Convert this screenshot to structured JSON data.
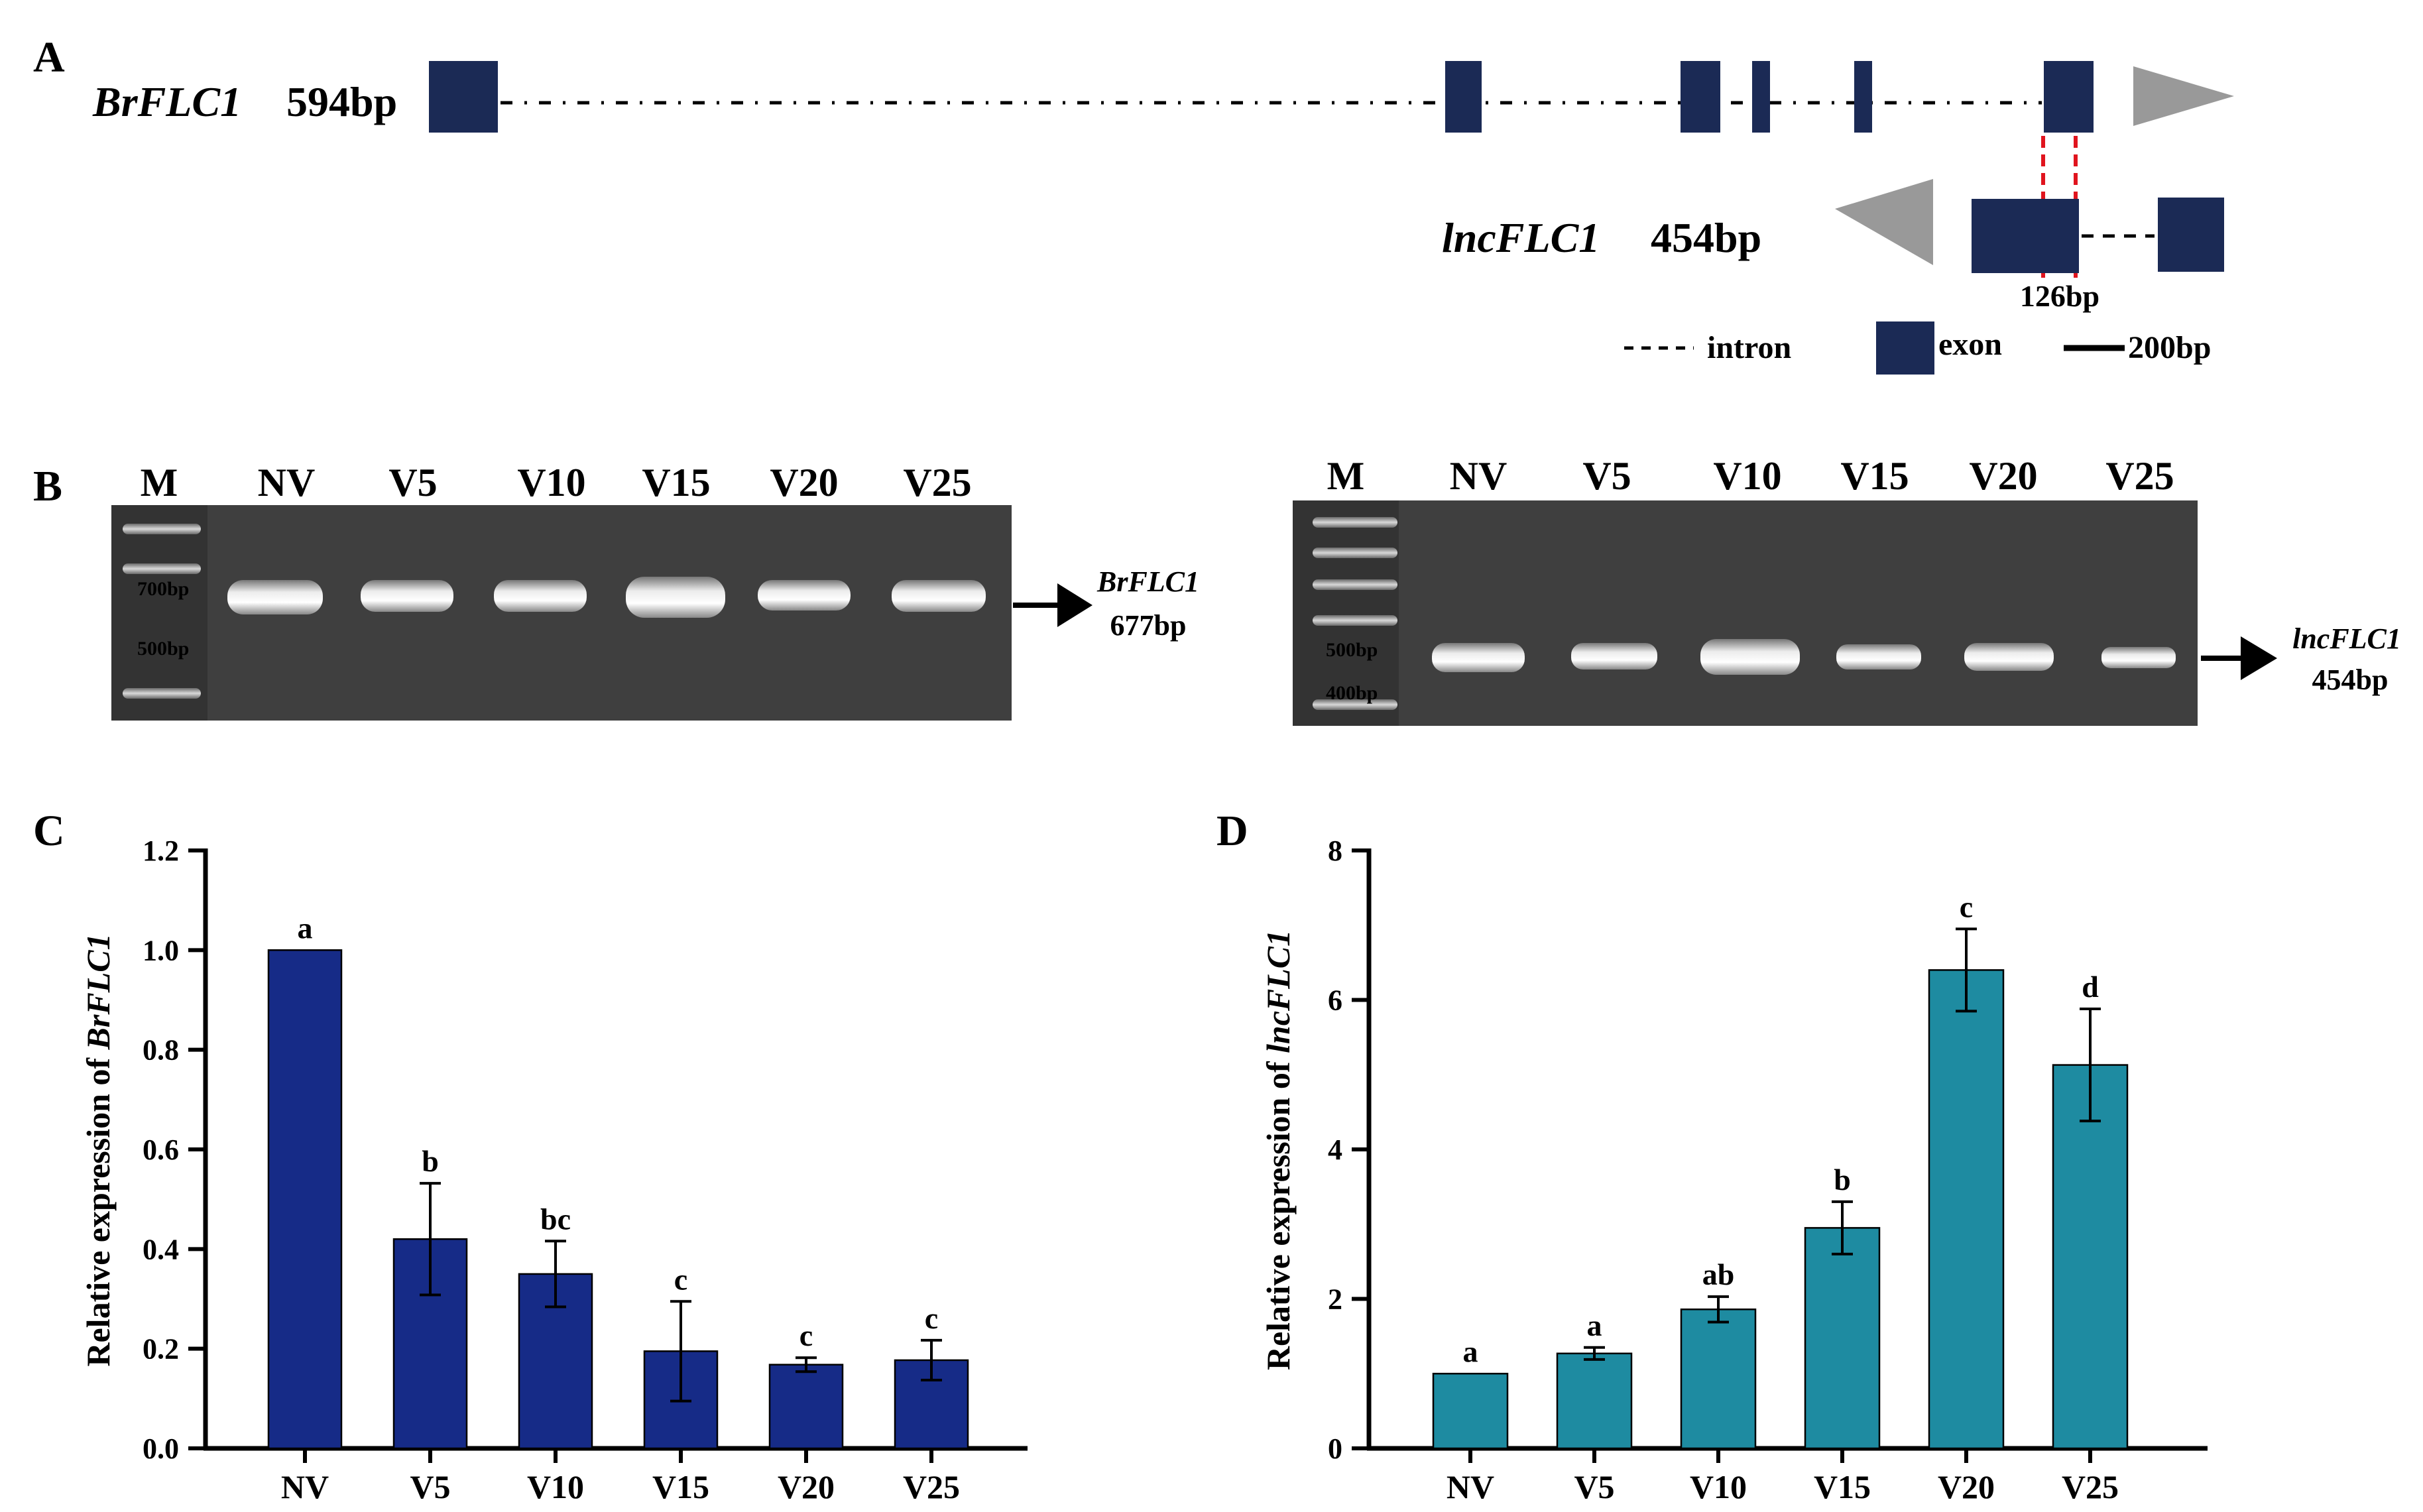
{
  "panels": {
    "A": {
      "letter": "A",
      "gene1_name": "BrFLC1",
      "gene1_len": "594bp",
      "gene2_name": "lncFLC1",
      "gene2_len": "454bp",
      "overlap_label": "126bp",
      "legend": {
        "intron": "intron",
        "exon": "exon",
        "scale": "200bp"
      },
      "colors": {
        "exon": "#1b2a55",
        "arrow": "#999999",
        "overlap": "#e0141e"
      }
    },
    "B": {
      "letter": "B",
      "left_gel": {
        "lanes": [
          "M",
          "NV",
          "V5",
          "V10",
          "V15",
          "V20",
          "V25"
        ],
        "markers": [
          "700bp",
          "500bp"
        ],
        "product_name": "BrFLC1",
        "product_size": "677bp"
      },
      "right_gel": {
        "lanes": [
          "M",
          "NV",
          "V5",
          "V10",
          "V15",
          "V20",
          "V25"
        ],
        "markers": [
          "500bp",
          "400bp"
        ],
        "product_name": "lncFLC1",
        "product_size": "454bp"
      }
    }
  },
  "chart_data": [
    {
      "panel": "C",
      "type": "bar",
      "categories": [
        "NV",
        "V5",
        "V10",
        "V15",
        "V20",
        "V25"
      ],
      "values": [
        1.0,
        0.42,
        0.35,
        0.195,
        0.168,
        0.177
      ],
      "errors": [
        0.0,
        0.112,
        0.066,
        0.1,
        0.014,
        0.04
      ],
      "letters": [
        "a",
        "b",
        "bc",
        "c",
        "c",
        "c"
      ],
      "ylabel_prefix": "Relative expression of ",
      "ylabel_gene": "BrFLC1",
      "ylim": [
        0,
        1.2
      ],
      "yticks": [
        "0.0",
        "0.2",
        "0.4",
        "0.6",
        "0.8",
        "1.0",
        "1.2"
      ],
      "color": "#162b87"
    },
    {
      "panel": "D",
      "type": "bar",
      "categories": [
        "NV",
        "V5",
        "V10",
        "V15",
        "V20",
        "V25"
      ],
      "values": [
        1.0,
        1.27,
        1.86,
        2.95,
        6.4,
        5.13
      ],
      "errors": [
        0.0,
        0.08,
        0.17,
        0.35,
        0.55,
        0.75
      ],
      "letters": [
        "a",
        "a",
        "ab",
        "b",
        "c",
        "d"
      ],
      "ylabel_prefix": "Relative expression of ",
      "ylabel_gene": "lncFLC1",
      "ylim": [
        0,
        8
      ],
      "yticks": [
        "0",
        "2",
        "4",
        "6",
        "8"
      ],
      "color": "#1e8ba1"
    }
  ]
}
